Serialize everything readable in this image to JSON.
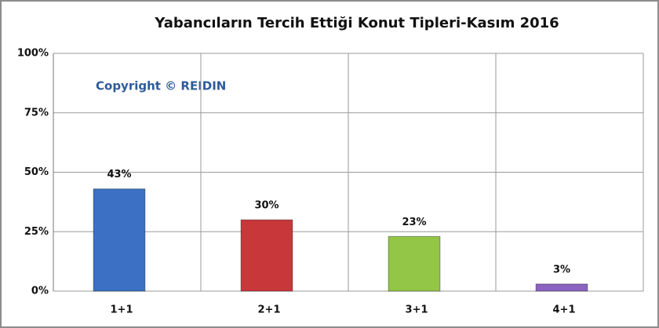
{
  "chart_data": {
    "type": "bar",
    "title": "Yabancıların  Tercih Ettiği Konut  Tipleri-Kasım 2016",
    "annotation": "Copyright © REIDIN",
    "categories": [
      "1+1",
      "2+1",
      "3+1",
      "4+1"
    ],
    "values": [
      43,
      30,
      23,
      3
    ],
    "value_labels": [
      "43%",
      "30%",
      "23%",
      "3%"
    ],
    "colors": [
      "#3b70c4",
      "#c8373a",
      "#93c546",
      "#8a63c0"
    ],
    "ylim": [
      0,
      100
    ],
    "yticks": [
      {
        "value": 0,
        "label": "0%"
      },
      {
        "value": 25,
        "label": "25%"
      },
      {
        "value": 50,
        "label": "50%"
      },
      {
        "value": 75,
        "label": "75%"
      },
      {
        "value": 100,
        "label": "100%"
      }
    ],
    "grid": true
  }
}
